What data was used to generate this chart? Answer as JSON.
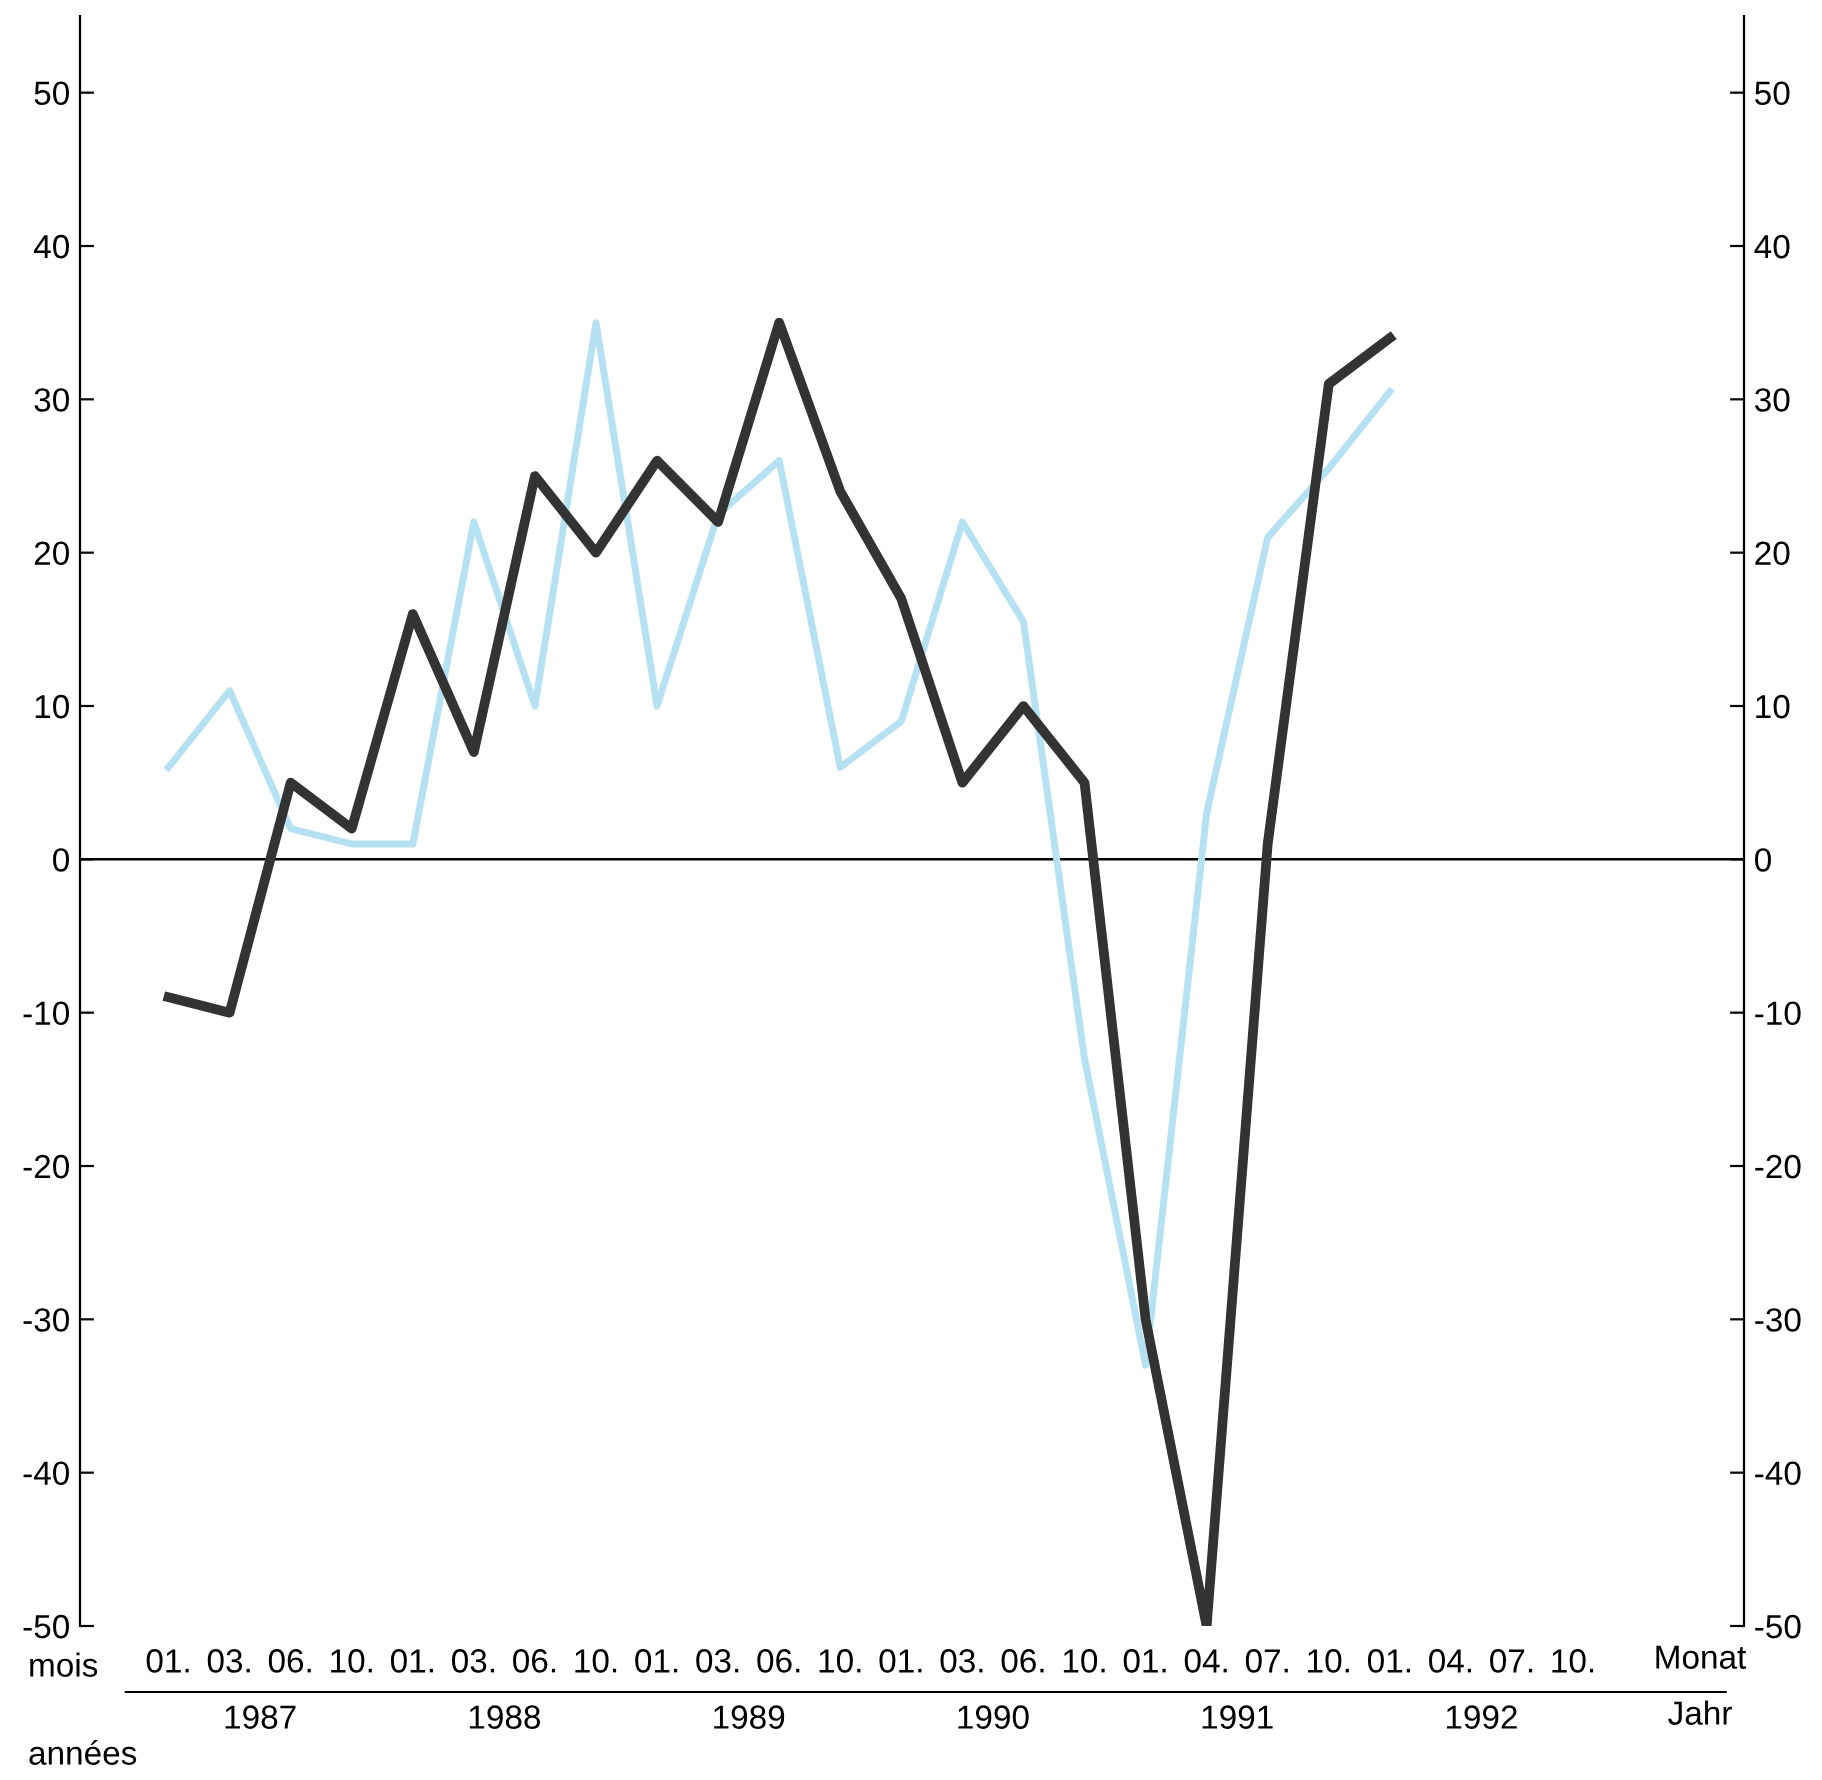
{
  "chart_data": {
    "type": "line",
    "categories": [
      "01.",
      "03.",
      "06.",
      "10.",
      "01.",
      "03.",
      "06.",
      "10.",
      "01.",
      "03.",
      "06.",
      "10.",
      "01.",
      "03.",
      "06.",
      "10.",
      "01.",
      "04.",
      "07.",
      "10.",
      "01.",
      "04.",
      "07.",
      "10."
    ],
    "series": [
      {
        "color": "#b5e1f3",
        "values": [
          6,
          11,
          2,
          1,
          1,
          22,
          10,
          35,
          10,
          22.5,
          26,
          6,
          9,
          22,
          15.5,
          -13,
          -33,
          3,
          21,
          25.5,
          30.5,
          null,
          null,
          null
        ]
      },
      {
        "color": "#333333",
        "values": [
          -9,
          -10,
          5,
          2,
          16,
          7,
          25,
          20,
          26,
          22,
          35,
          24,
          17,
          5,
          10,
          5,
          -30,
          -50,
          1,
          31,
          34,
          null,
          null,
          null
        ]
      }
    ],
    "ylim": [
      -50,
      55
    ],
    "yticks": [
      -50,
      -40,
      -30,
      -20,
      -10,
      0,
      10,
      20,
      30,
      40,
      50
    ],
    "y2lim": [
      -50,
      55
    ],
    "y2ticks": [
      -50,
      -40,
      -30,
      -20,
      -10,
      0,
      10,
      20,
      30,
      40,
      50
    ],
    "ref_lines": [
      {
        "axis": "y",
        "value": 0,
        "color": "#000000"
      }
    ],
    "annotations": [
      "mois",
      "années",
      "1987",
      "1988",
      "1989",
      "1990",
      "1991",
      "1992",
      "Monat",
      "Jahr"
    ],
    "grid": false,
    "legend": false,
    "marker": "none",
    "line_style": "solid"
  }
}
